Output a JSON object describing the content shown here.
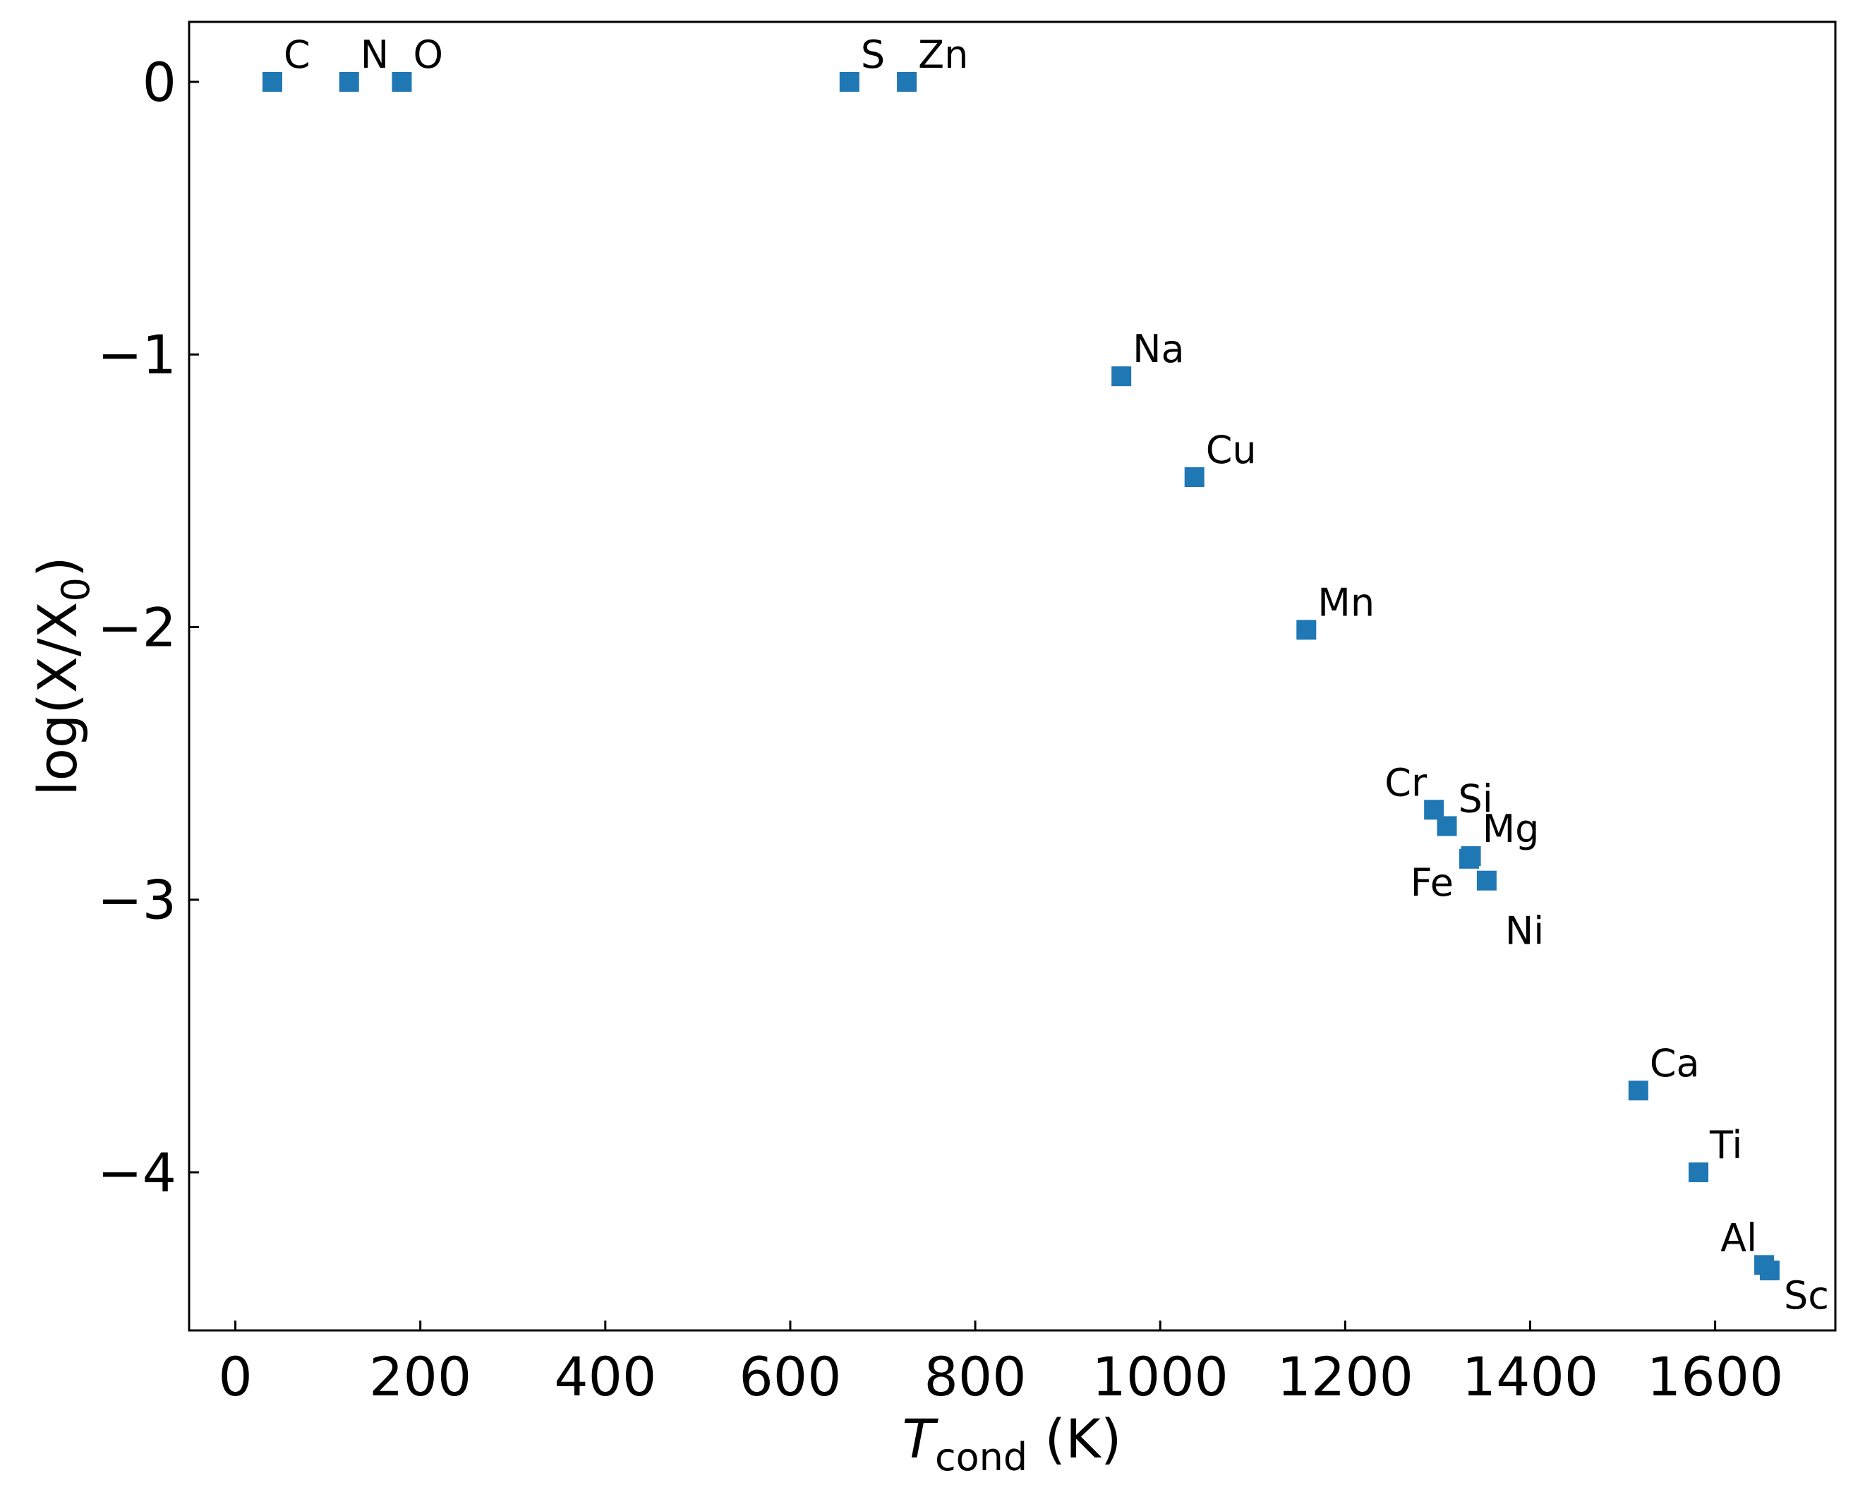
{
  "chart_data": {
    "type": "scatter",
    "xlabel": {
      "italic": "T",
      "sub": "cond",
      "rest": " (K)"
    },
    "ylabel": {
      "main": "log(X/X",
      "sub": "0",
      "close": ")"
    },
    "xlim": [
      -50,
      1730
    ],
    "ylim": [
      -4.58,
      0.22
    ],
    "xticks": [
      0,
      200,
      400,
      600,
      800,
      1000,
      1200,
      1400,
      1600
    ],
    "yticks": [
      0,
      -1,
      -2,
      -3,
      -4
    ],
    "marker": "square",
    "color": "#1f77b4",
    "grid": false,
    "points": [
      {
        "label": "C",
        "x": 40,
        "y": 0.0,
        "label_pos": "upper-right"
      },
      {
        "label": "N",
        "x": 123,
        "y": 0.0,
        "label_pos": "upper-right"
      },
      {
        "label": "O",
        "x": 180,
        "y": 0.0,
        "label_pos": "upper-right"
      },
      {
        "label": "S",
        "x": 664,
        "y": 0.0,
        "label_pos": "upper-right"
      },
      {
        "label": "Zn",
        "x": 726,
        "y": 0.0,
        "label_pos": "upper-right"
      },
      {
        "label": "Na",
        "x": 958,
        "y": -1.08,
        "label_pos": "upper-right"
      },
      {
        "label": "Cu",
        "x": 1037,
        "y": -1.45,
        "label_pos": "upper-right"
      },
      {
        "label": "Mn",
        "x": 1158,
        "y": -2.01,
        "label_pos": "upper-right"
      },
      {
        "label": "Cr",
        "x": 1296,
        "y": -2.67,
        "label_pos": "upper-left"
      },
      {
        "label": "Si",
        "x": 1310,
        "y": -2.73,
        "label_pos": "upper-right"
      },
      {
        "label": "Mg",
        "x": 1336,
        "y": -2.84,
        "label_pos": "upper-right"
      },
      {
        "label": "Fe",
        "x": 1334,
        "y": -2.85,
        "label_pos": "lower-left"
      },
      {
        "label": "Ni",
        "x": 1353,
        "y": -2.93,
        "label_pos": "far-below-right"
      },
      {
        "label": "Ca",
        "x": 1517,
        "y": -3.7,
        "label_pos": "upper-right"
      },
      {
        "label": "Ti",
        "x": 1582,
        "y": -4.0,
        "label_pos": "upper-right"
      },
      {
        "label": "Al",
        "x": 1653,
        "y": -4.34,
        "label_pos": "upper-left"
      },
      {
        "label": "Sc",
        "x": 1659,
        "y": -4.36,
        "label_pos": "lower-right"
      }
    ]
  }
}
